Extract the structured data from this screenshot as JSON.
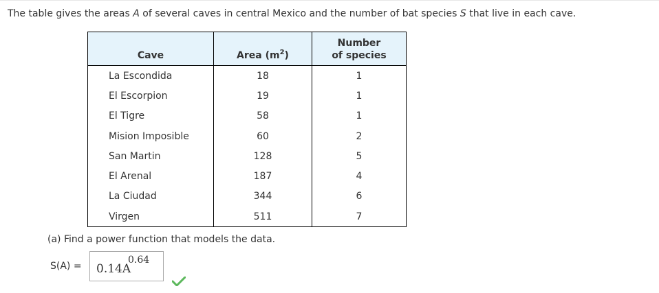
{
  "intro": {
    "part1": "The table gives the areas ",
    "var_A": "A",
    "part2": " of several caves in central Mexico and the number of bat species ",
    "var_S": "S",
    "part3": " that live in each cave."
  },
  "table": {
    "headers": {
      "cave": "Cave",
      "area": "Area (m",
      "area_sup": "2",
      "area_close": ")",
      "num_line1": "Number",
      "num_line2": "of species"
    },
    "rows": [
      {
        "cave": "La Escondida",
        "area": "18",
        "species": "1"
      },
      {
        "cave": "El Escorpion",
        "area": "19",
        "species": "1"
      },
      {
        "cave": "El Tigre",
        "area": "58",
        "species": "1"
      },
      {
        "cave": "Mision Imposible",
        "area": "60",
        "species": "2"
      },
      {
        "cave": "San Martin",
        "area": "128",
        "species": "5"
      },
      {
        "cave": "El Arenal",
        "area": "187",
        "species": "4"
      },
      {
        "cave": "La Ciudad",
        "area": "344",
        "species": "6"
      },
      {
        "cave": "Virgen",
        "area": "511",
        "species": "7"
      }
    ]
  },
  "question_a": "(a) Find a power function that models the data.",
  "answer": {
    "label_fn": "S(A)",
    "label_eq": " = ",
    "coef": "0.14A",
    "exponent": "0.64"
  },
  "status": {
    "check_color": "#5cb85c",
    "icon": "checkmark-icon"
  }
}
